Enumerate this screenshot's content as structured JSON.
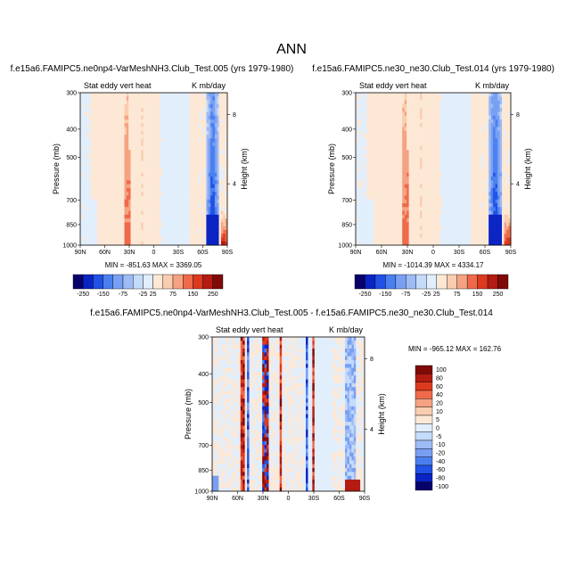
{
  "figure_title": "ANN",
  "colors": {
    "levels": [
      "#08006b",
      "#0a24c4",
      "#2151e6",
      "#4a7ff0",
      "#789ff2",
      "#9dbbf5",
      "#c4dbfa",
      "#e1eefc",
      "#fde8d6",
      "#f9cdb0",
      "#f5a283",
      "#ef6a4a",
      "#dc3a1e",
      "#b31b13",
      "#7f0a08"
    ]
  },
  "chart_data": [
    {
      "type": "heatmap",
      "title": "f.e15a6.FAMIPC5.ne0np4-VarMeshNH3.Club_Test.005 (yrs 1979-1980)",
      "left_label": "Stat eddy vert heat",
      "right_label": "K mb/day",
      "xlabel": "",
      "ylabel": "Pressure (mb)",
      "ylabel_right": "Height (km)",
      "x_ticks": [
        "90N",
        "60N",
        "30N",
        "0",
        "30S",
        "60S",
        "90S"
      ],
      "y_ticks": [
        "300",
        "400",
        "500",
        "700",
        "850",
        "1000"
      ],
      "y_right_ticks": [
        "8",
        "4"
      ],
      "min": -851.63,
      "max": 3369.05,
      "min_label": "MIN = -851.63",
      "max_label": "MAX = 3369.05",
      "colorbar_labels": [
        "-250",
        "-150",
        "-75",
        "-25",
        "25",
        "75",
        "150",
        "250"
      ],
      "seed": 11
    },
    {
      "type": "heatmap",
      "title": "f.e15a6.FAMIPC5.ne30_ne30.Club_Test.014 (yrs 1979-1980)",
      "left_label": "Stat eddy vert heat",
      "right_label": "K mb/day",
      "xlabel": "",
      "ylabel": "Pressure (mb)",
      "ylabel_right": "Height (km)",
      "x_ticks": [
        "90N",
        "60N",
        "30N",
        "0",
        "30S",
        "60S",
        "90S"
      ],
      "y_ticks": [
        "300",
        "400",
        "500",
        "700",
        "850",
        "1000"
      ],
      "y_right_ticks": [
        "8",
        "4"
      ],
      "min": -1014.39,
      "max": 4334.17,
      "min_label": "MIN = -1014.39",
      "max_label": "MAX = 4334.17",
      "colorbar_labels": [
        "-250",
        "-150",
        "-75",
        "-25",
        "25",
        "75",
        "150",
        "250"
      ],
      "seed": 29
    },
    {
      "type": "heatmap",
      "title": "f.e15a6.FAMIPC5.ne0np4-VarMeshNH3.Club_Test.005 - f.e15a6.FAMIPC5.ne30_ne30.Club_Test.014",
      "left_label": "Stat eddy vert heat",
      "right_label": "K mb/day",
      "xlabel": "",
      "ylabel": "Pressure (mb)",
      "ylabel_right": "Height (km)",
      "x_ticks": [
        "90N",
        "60N",
        "30N",
        "0",
        "30S",
        "60S",
        "90S"
      ],
      "y_ticks": [
        "300",
        "400",
        "500",
        "700",
        "850",
        "1000"
      ],
      "y_right_ticks": [
        "8",
        "4"
      ],
      "min": -965.12,
      "max": 162.76,
      "min_label": "MIN = -965.12",
      "max_label": "MAX = 162.76",
      "colorbar_labels": [
        "100",
        "80",
        "60",
        "40",
        "20",
        "10",
        "5",
        "0",
        "-5",
        "-10",
        "-20",
        "-40",
        "-60",
        "-80",
        "-100"
      ],
      "seed": 47
    }
  ]
}
